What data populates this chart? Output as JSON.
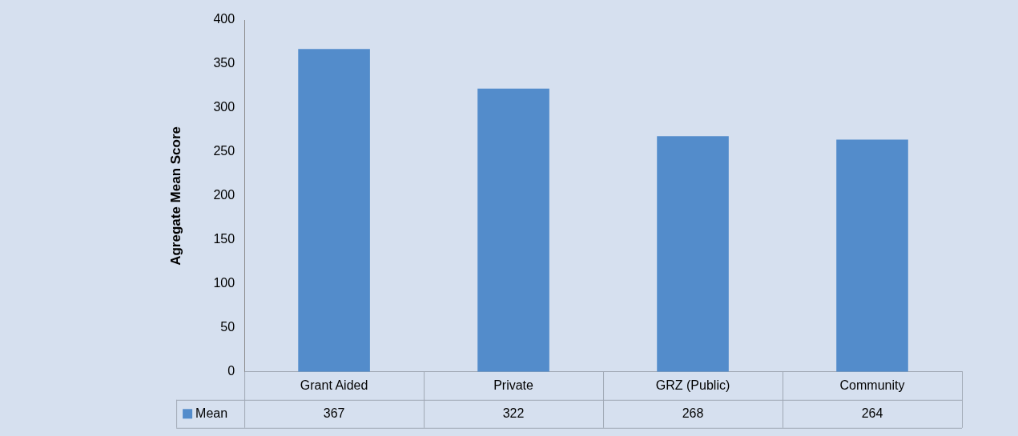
{
  "chart_data": {
    "type": "bar",
    "ylabel": "Agregate Mean Score",
    "categories": [
      "Grant Aided",
      "Private",
      "GRZ (Public)",
      "Community"
    ],
    "series": [
      {
        "name": "Mean",
        "color": "#538ccb",
        "values": [
          367,
          322,
          268,
          264
        ]
      }
    ],
    "ylim": [
      0,
      400
    ],
    "yticks": [
      0,
      50,
      100,
      150,
      200,
      250,
      300,
      350,
      400
    ],
    "grid": false,
    "legend": "bottom",
    "data_labels": true
  }
}
